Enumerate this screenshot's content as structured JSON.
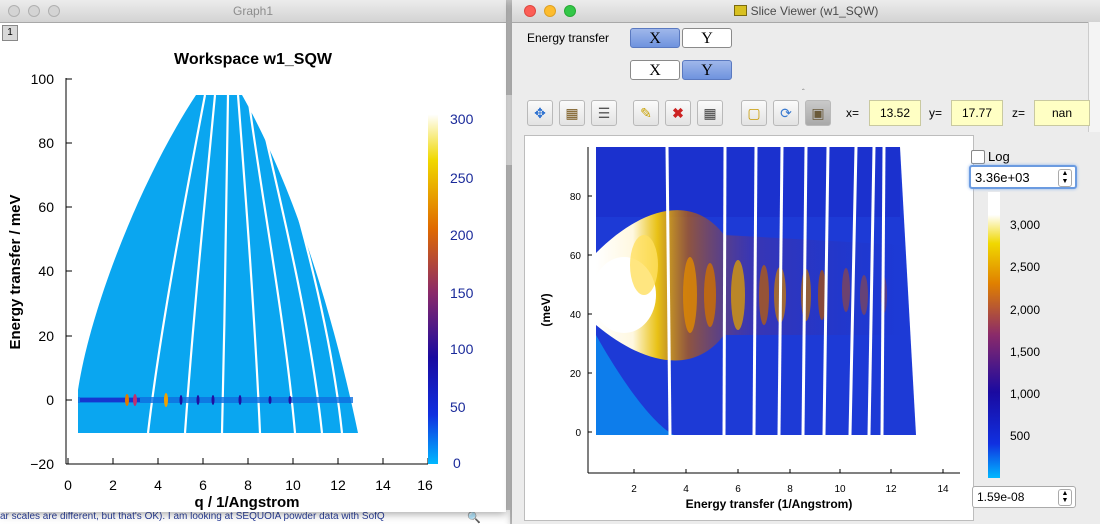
{
  "graph_window": {
    "title": "Graph1",
    "tab_label": "1",
    "plot_title": "Workspace w1_SQW",
    "xlabel": "q / 1/Angstrom",
    "ylabel": "Energy transfer / meV",
    "x_ticks": [
      "0",
      "2",
      "4",
      "6",
      "8",
      "10",
      "12",
      "14",
      "16"
    ],
    "y_ticks": [
      "100",
      "80",
      "60",
      "40",
      "20",
      "0",
      "−20"
    ],
    "colorbar_ticks": [
      "300",
      "250",
      "200",
      "150",
      "100",
      "50",
      "0"
    ]
  },
  "background_text": "ar scales are different, but that's OK). I am looking at SEQUOIA powder data with SofQ",
  "slice_viewer": {
    "title": "Slice Viewer (w1_SQW)",
    "dim1_label": "Energy transfer",
    "x_button": "X",
    "y_button": "Y",
    "readout": {
      "x_label": "x=",
      "x_value": "13.52",
      "y_label": "y=",
      "y_value": "17.77",
      "z_label": "z=",
      "z_value": "nan"
    },
    "log_label": "Log",
    "cmax_value": "3.36e+03",
    "cmin_value": "1.59e-08",
    "xlabel": "Energy transfer (1/Angstrom)",
    "ylabel": "(meV)",
    "x_ticks": [
      "2",
      "4",
      "6",
      "8",
      "10",
      "12",
      "14"
    ],
    "y_ticks": [
      "80",
      "60",
      "40",
      "20",
      "0"
    ],
    "colorbar_ticks": [
      "3,000",
      "2,500",
      "2,000",
      "1,500",
      "1,000",
      "500"
    ]
  },
  "colors": {
    "accent_blue": "#6f93de",
    "readout_bg": "#ffffc4",
    "plot_fill": "#0aa6f0"
  }
}
